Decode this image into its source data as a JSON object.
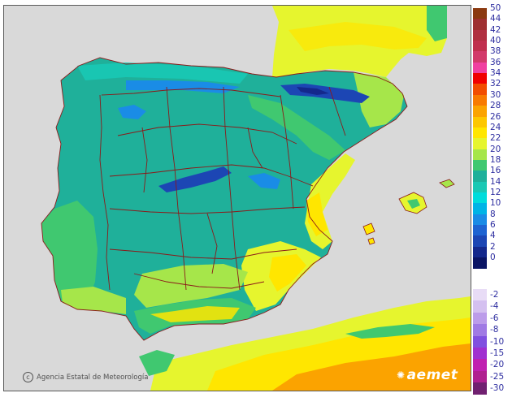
{
  "credit": {
    "icon": "copyright-icon",
    "text": "Agencia Estatal de Meteorología"
  },
  "logo": {
    "text": "aemet"
  },
  "legend": {
    "positive": [
      {
        "label": "50",
        "color": "#8b3a10"
      },
      {
        "label": "44",
        "color": "#9e3030"
      },
      {
        "label": "42",
        "color": "#b03040"
      },
      {
        "label": "40",
        "color": "#c0304e"
      },
      {
        "label": "38",
        "color": "#d23a6a"
      },
      {
        "label": "36",
        "color": "#f040a0"
      },
      {
        "label": "34",
        "color": "#f00000"
      },
      {
        "label": "32",
        "color": "#f24d00"
      },
      {
        "label": "30",
        "color": "#f87a00"
      },
      {
        "label": "28",
        "color": "#fba300"
      },
      {
        "label": "26",
        "color": "#fdc700"
      },
      {
        "label": "24",
        "color": "#ffe600"
      },
      {
        "label": "22",
        "color": "#e6f52e"
      },
      {
        "label": "20",
        "color": "#a6e64a"
      },
      {
        "label": "18",
        "color": "#40c870"
      },
      {
        "label": "16",
        "color": "#1fb09a"
      },
      {
        "label": "14",
        "color": "#1ac8b4"
      },
      {
        "label": "12",
        "color": "#00dcdc"
      },
      {
        "label": "10",
        "color": "#00b4e6"
      },
      {
        "label": "8",
        "color": "#1a8ce6"
      },
      {
        "label": "6",
        "color": "#1e64d2"
      },
      {
        "label": "4",
        "color": "#1c46b4"
      },
      {
        "label": "2",
        "color": "#14288c"
      },
      {
        "label": "0",
        "color": "#0a1464"
      }
    ],
    "negative": [
      {
        "label": "-2",
        "color": "#e8dcf6"
      },
      {
        "label": "-4",
        "color": "#d4c0f0"
      },
      {
        "label": "-6",
        "color": "#bc9cea"
      },
      {
        "label": "-8",
        "color": "#a07ae4"
      },
      {
        "label": "-10",
        "color": "#8050e0"
      },
      {
        "label": "-15",
        "color": "#a030d0"
      },
      {
        "label": "-20",
        "color": "#c020b0"
      },
      {
        "label": "-25",
        "color": "#b02090"
      },
      {
        "label": "-30",
        "color": "#702070"
      }
    ]
  },
  "colors": {
    "sea": "#d9d9d9",
    "border": "#8b1a1a",
    "teal": "#1fb09a",
    "cyan": "#19c6b2",
    "green": "#40c870",
    "lime": "#a6e64a",
    "yellow": "#e6f52e",
    "gold": "#ffe600",
    "orange": "#fba300",
    "blue": "#1a8ce6",
    "navy": "#1c46b4",
    "deep": "#14288c"
  }
}
